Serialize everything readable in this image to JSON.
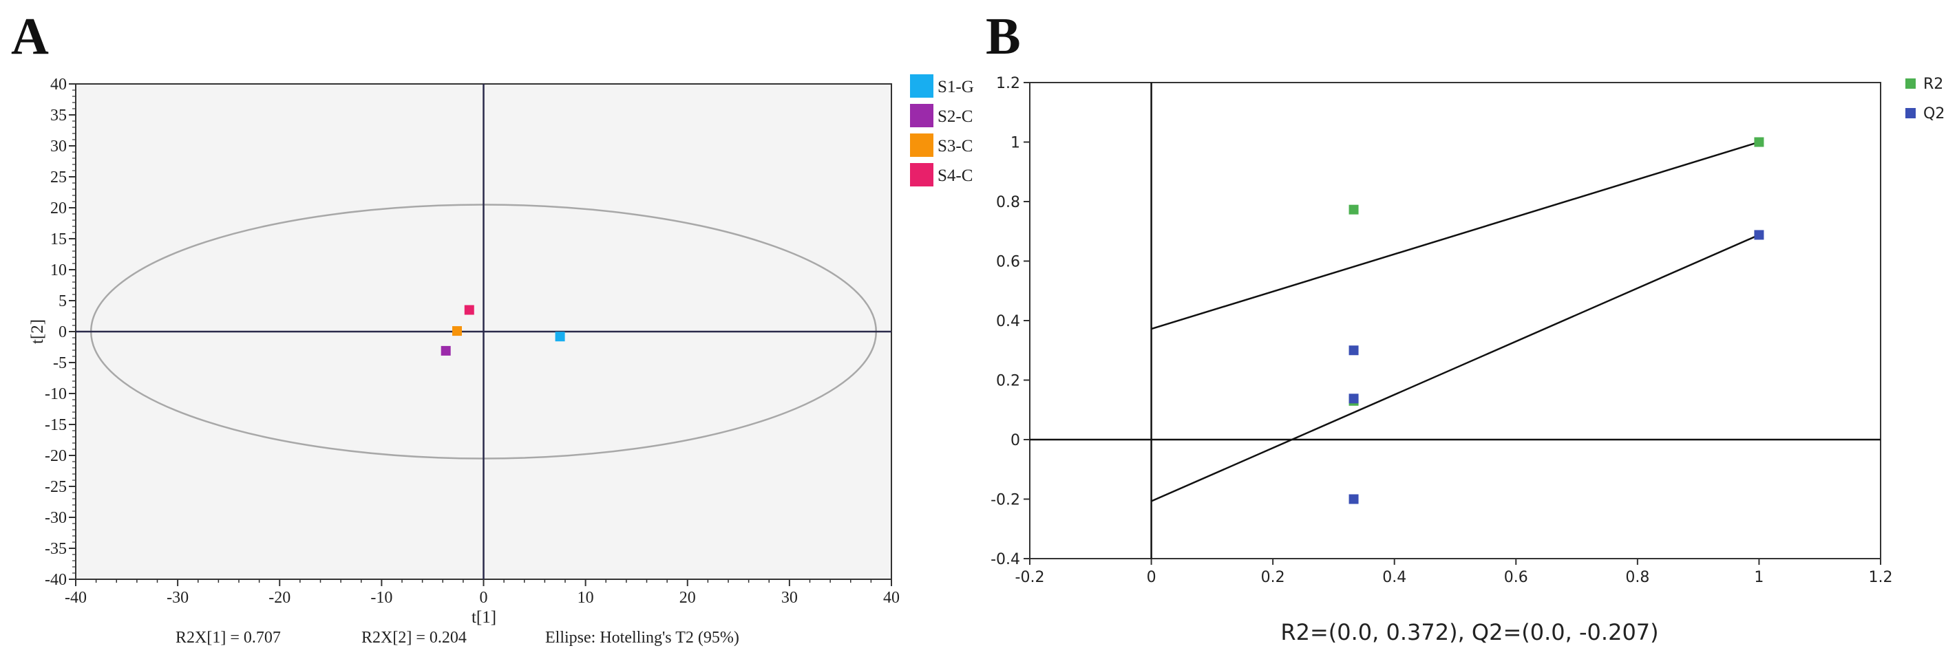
{
  "panel_labels": {
    "a": "A",
    "b": "B"
  },
  "colors": {
    "s1": "#18aef0",
    "s2": "#9b2aaa",
    "s3": "#f7930a",
    "s4": "#e8206a",
    "r2": "#4cb050",
    "q2": "#3a4fb4",
    "plot_bg": "#f4f4f4",
    "ellipse": "#a8a8a8"
  },
  "chart_data": [
    {
      "id": "A",
      "type": "scatter",
      "title": "",
      "xlabel": "t[1]",
      "ylabel": "t[2]",
      "xlim": [
        -40,
        40
      ],
      "ylim": [
        -40,
        40
      ],
      "x_ticks": [
        -40,
        -30,
        -20,
        -10,
        0,
        10,
        20,
        30,
        40
      ],
      "y_ticks": [
        -40,
        -35,
        -30,
        -25,
        -20,
        -15,
        -10,
        -5,
        0,
        5,
        10,
        15,
        20,
        25,
        30,
        35,
        40
      ],
      "ellipse": {
        "rx": 38.5,
        "ry": 20.5,
        "label": "Ellipse: Hotelling's T2 (95%)"
      },
      "series": [
        {
          "name": "S1-G",
          "color_key": "s1",
          "points": [
            [
              7.5,
              -0.8
            ]
          ]
        },
        {
          "name": "S2-C",
          "color_key": "s2",
          "points": [
            [
              -3.7,
              -3.1
            ]
          ]
        },
        {
          "name": "S3-C",
          "color_key": "s3",
          "points": [
            [
              -2.6,
              0.1
            ]
          ]
        },
        {
          "name": "S4-C",
          "color_key": "s4",
          "points": [
            [
              -1.4,
              3.5
            ]
          ]
        }
      ],
      "footer": [
        "R2X[1] = 0.707",
        "R2X[2] = 0.204",
        "Ellipse: Hotelling's T2 (95%)"
      ],
      "legend_position": "top-right outside"
    },
    {
      "id": "B",
      "type": "scatter",
      "title": "",
      "xlabel": "",
      "ylabel": "",
      "xlim": [
        -0.2,
        1.2
      ],
      "ylim": [
        -0.4,
        1.2
      ],
      "x_ticks": [
        "-0.2",
        "0",
        "0.2",
        "0.4",
        "0.6",
        "0.8",
        "1",
        "1.2"
      ],
      "y_ticks": [
        "-0.4",
        "-0.2",
        "0",
        "0.2",
        "0.4",
        "0.6",
        "0.8",
        "1",
        "1.2"
      ],
      "series": [
        {
          "name": "R2",
          "color_key": "r2",
          "points": [
            [
              0.333,
              0.773
            ],
            [
              0.333,
              0.13
            ],
            [
              1,
              1
            ]
          ]
        },
        {
          "name": "Q2",
          "color_key": "q2",
          "points": [
            [
              0.333,
              0.3
            ],
            [
              0.333,
              0.138
            ],
            [
              0.333,
              -0.2
            ],
            [
              1,
              0.688
            ]
          ]
        }
      ],
      "regression_lines": [
        {
          "name": "R2",
          "intercept": 0.372,
          "end": [
            1,
            1
          ]
        },
        {
          "name": "Q2",
          "intercept": -0.207,
          "end": [
            1,
            0.688
          ]
        }
      ],
      "footer": "R2=(0.0, 0.372), Q2=(0.0, -0.207)",
      "legend_position": "top-right outside"
    }
  ]
}
